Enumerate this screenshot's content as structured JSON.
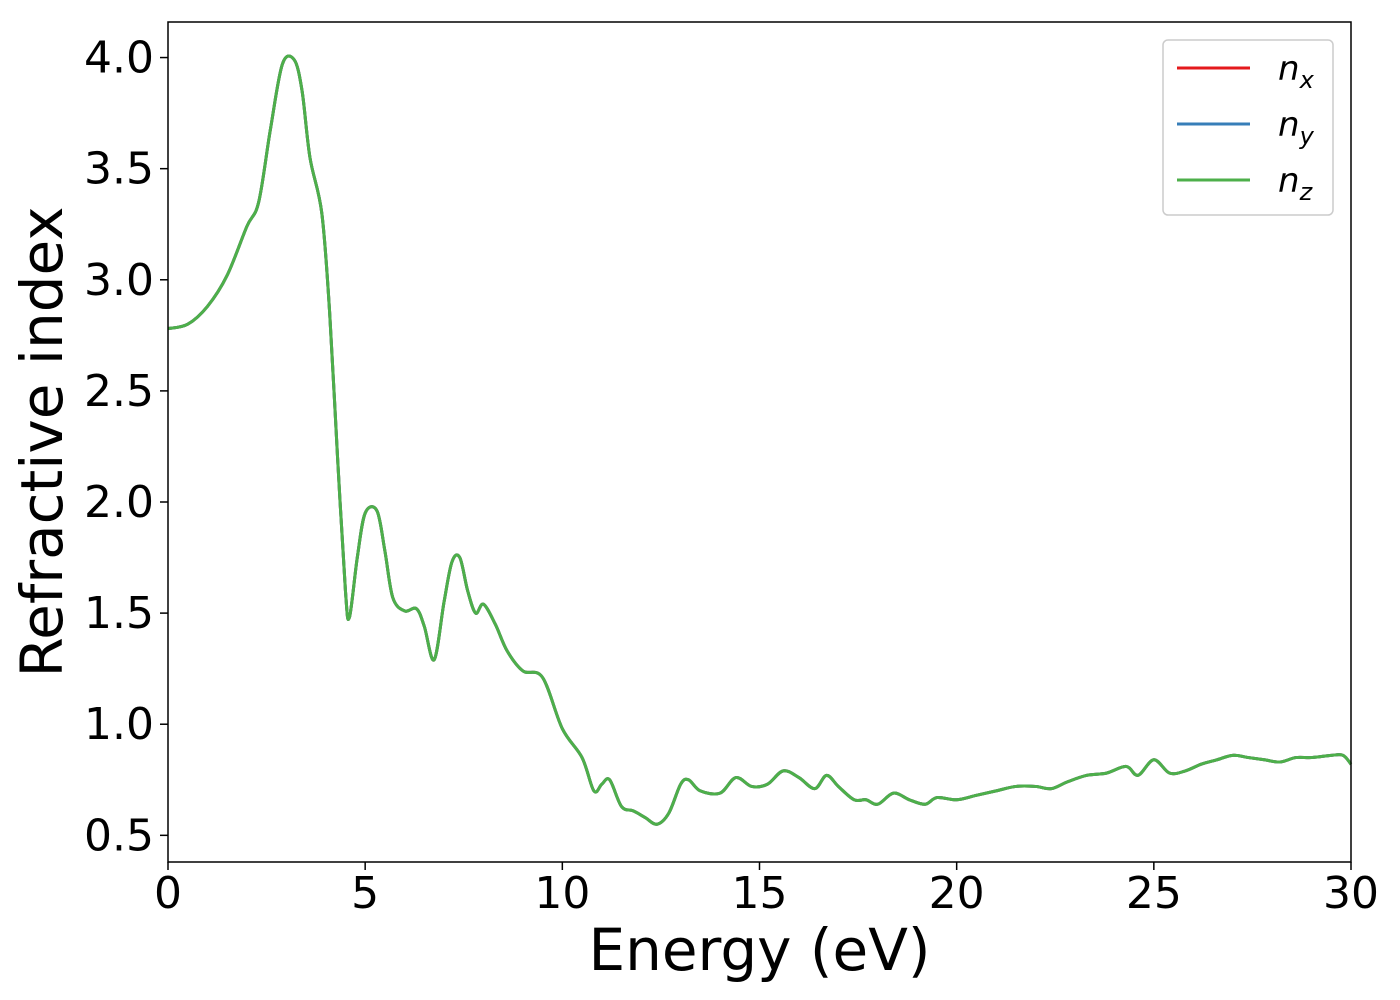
{
  "chart_data": {
    "type": "line",
    "xlabel": "Energy (eV)",
    "ylabel": "Refractive index",
    "xlim": [
      0,
      30
    ],
    "ylim": [
      0.38,
      4.16
    ],
    "xticks": [
      0,
      5,
      10,
      15,
      20,
      25,
      30
    ],
    "xtick_labels": [
      "0",
      "5",
      "10",
      "15",
      "20",
      "25",
      "30"
    ],
    "yticks": [
      0.5,
      1.0,
      1.5,
      2.0,
      2.5,
      3.0,
      3.5,
      4.0
    ],
    "ytick_labels": [
      "0.5",
      "1.0",
      "1.5",
      "2.0",
      "2.5",
      "3.0",
      "3.5",
      "4.0"
    ],
    "grid": false,
    "legend_position": "top-right",
    "series": [
      {
        "name": "n_x",
        "label_base": "n",
        "label_sub": "x",
        "color": "#e41a1c",
        "x": [
          0,
          0.5,
          1,
          1.5,
          2,
          2.3,
          2.6,
          2.9,
          3.2,
          3.4,
          3.6,
          3.9,
          4.1,
          4.3,
          4.5,
          4.6,
          4.8,
          5.0,
          5.3,
          5.5,
          5.7,
          6.0,
          6.3,
          6.5,
          6.75,
          7.0,
          7.2,
          7.4,
          7.6,
          7.8,
          8.0,
          8.3,
          8.6,
          9.0,
          9.5,
          10,
          10.5,
          10.8,
          11.0,
          11.2,
          11.5,
          11.8,
          12.1,
          12.4,
          12.7,
          13.0,
          13.2,
          13.5,
          14.0,
          14.4,
          14.8,
          15.2,
          15.6,
          16.0,
          16.4,
          16.7,
          17.0,
          17.4,
          17.7,
          18.0,
          18.4,
          18.8,
          19.2,
          19.5,
          20.0,
          20.5,
          21.0,
          21.5,
          22.0,
          22.4,
          22.8,
          23.3,
          23.8,
          24.3,
          24.6,
          25.0,
          25.4,
          25.8,
          26.2,
          26.6,
          27.0,
          27.4,
          27.8,
          28.2,
          28.6,
          29.0,
          29.5,
          29.8,
          30
        ],
        "y": [
          2.78,
          2.8,
          2.88,
          3.02,
          3.24,
          3.35,
          3.68,
          3.97,
          3.99,
          3.85,
          3.55,
          3.3,
          2.85,
          2.2,
          1.6,
          1.48,
          1.75,
          1.95,
          1.96,
          1.78,
          1.57,
          1.51,
          1.52,
          1.44,
          1.29,
          1.55,
          1.73,
          1.75,
          1.6,
          1.5,
          1.54,
          1.45,
          1.33,
          1.24,
          1.21,
          0.98,
          0.85,
          0.7,
          0.73,
          0.75,
          0.63,
          0.61,
          0.58,
          0.55,
          0.6,
          0.73,
          0.75,
          0.7,
          0.69,
          0.76,
          0.72,
          0.73,
          0.79,
          0.76,
          0.71,
          0.77,
          0.72,
          0.66,
          0.66,
          0.64,
          0.69,
          0.66,
          0.64,
          0.67,
          0.66,
          0.68,
          0.7,
          0.72,
          0.72,
          0.71,
          0.74,
          0.77,
          0.78,
          0.81,
          0.77,
          0.84,
          0.78,
          0.79,
          0.82,
          0.84,
          0.86,
          0.85,
          0.84,
          0.83,
          0.85,
          0.85,
          0.86,
          0.86,
          0.82
        ]
      },
      {
        "name": "n_y",
        "label_base": "n",
        "label_sub": "y",
        "color": "#377eb8",
        "x": [
          0,
          0.5,
          1,
          1.5,
          2,
          2.3,
          2.6,
          2.9,
          3.2,
          3.4,
          3.6,
          3.9,
          4.1,
          4.3,
          4.5,
          4.6,
          4.8,
          5.0,
          5.3,
          5.5,
          5.7,
          6.0,
          6.3,
          6.5,
          6.75,
          7.0,
          7.2,
          7.4,
          7.6,
          7.8,
          8.0,
          8.3,
          8.6,
          9.0,
          9.5,
          10,
          10.5,
          10.8,
          11.0,
          11.2,
          11.5,
          11.8,
          12.1,
          12.4,
          12.7,
          13.0,
          13.2,
          13.5,
          14.0,
          14.4,
          14.8,
          15.2,
          15.6,
          16.0,
          16.4,
          16.7,
          17.0,
          17.4,
          17.7,
          18.0,
          18.4,
          18.8,
          19.2,
          19.5,
          20.0,
          20.5,
          21.0,
          21.5,
          22.0,
          22.4,
          22.8,
          23.3,
          23.8,
          24.3,
          24.6,
          25.0,
          25.4,
          25.8,
          26.2,
          26.6,
          27.0,
          27.4,
          27.8,
          28.2,
          28.6,
          29.0,
          29.5,
          29.8,
          30
        ],
        "y": [
          2.78,
          2.8,
          2.88,
          3.02,
          3.24,
          3.35,
          3.68,
          3.97,
          3.99,
          3.85,
          3.55,
          3.3,
          2.85,
          2.2,
          1.6,
          1.48,
          1.75,
          1.95,
          1.96,
          1.78,
          1.57,
          1.51,
          1.52,
          1.44,
          1.29,
          1.55,
          1.73,
          1.75,
          1.6,
          1.5,
          1.54,
          1.45,
          1.33,
          1.24,
          1.21,
          0.98,
          0.85,
          0.7,
          0.73,
          0.75,
          0.63,
          0.61,
          0.58,
          0.55,
          0.6,
          0.73,
          0.75,
          0.7,
          0.69,
          0.76,
          0.72,
          0.73,
          0.79,
          0.76,
          0.71,
          0.77,
          0.72,
          0.66,
          0.66,
          0.64,
          0.69,
          0.66,
          0.64,
          0.67,
          0.66,
          0.68,
          0.7,
          0.72,
          0.72,
          0.71,
          0.74,
          0.77,
          0.78,
          0.81,
          0.77,
          0.84,
          0.78,
          0.79,
          0.82,
          0.84,
          0.86,
          0.85,
          0.84,
          0.83,
          0.85,
          0.85,
          0.86,
          0.86,
          0.82
        ]
      },
      {
        "name": "n_z",
        "label_base": "n",
        "label_sub": "z",
        "color": "#4daf4a",
        "x": [
          0,
          0.5,
          1,
          1.5,
          2,
          2.3,
          2.6,
          2.9,
          3.2,
          3.4,
          3.6,
          3.9,
          4.1,
          4.3,
          4.5,
          4.6,
          4.8,
          5.0,
          5.3,
          5.5,
          5.7,
          6.0,
          6.3,
          6.5,
          6.75,
          7.0,
          7.2,
          7.4,
          7.6,
          7.8,
          8.0,
          8.3,
          8.6,
          9.0,
          9.5,
          10,
          10.5,
          10.8,
          11.0,
          11.2,
          11.5,
          11.8,
          12.1,
          12.4,
          12.7,
          13.0,
          13.2,
          13.5,
          14.0,
          14.4,
          14.8,
          15.2,
          15.6,
          16.0,
          16.4,
          16.7,
          17.0,
          17.4,
          17.7,
          18.0,
          18.4,
          18.8,
          19.2,
          19.5,
          20.0,
          20.5,
          21.0,
          21.5,
          22.0,
          22.4,
          22.8,
          23.3,
          23.8,
          24.3,
          24.6,
          25.0,
          25.4,
          25.8,
          26.2,
          26.6,
          27.0,
          27.4,
          27.8,
          28.2,
          28.6,
          29.0,
          29.5,
          29.8,
          30
        ],
        "y": [
          2.78,
          2.8,
          2.88,
          3.02,
          3.24,
          3.35,
          3.68,
          3.97,
          3.99,
          3.85,
          3.55,
          3.3,
          2.85,
          2.2,
          1.6,
          1.48,
          1.75,
          1.95,
          1.96,
          1.78,
          1.57,
          1.51,
          1.52,
          1.44,
          1.29,
          1.55,
          1.73,
          1.75,
          1.6,
          1.5,
          1.54,
          1.45,
          1.33,
          1.24,
          1.21,
          0.98,
          0.85,
          0.7,
          0.73,
          0.75,
          0.63,
          0.61,
          0.58,
          0.55,
          0.6,
          0.73,
          0.75,
          0.7,
          0.69,
          0.76,
          0.72,
          0.73,
          0.79,
          0.76,
          0.71,
          0.77,
          0.72,
          0.66,
          0.66,
          0.64,
          0.69,
          0.66,
          0.64,
          0.67,
          0.66,
          0.68,
          0.7,
          0.72,
          0.72,
          0.71,
          0.74,
          0.77,
          0.78,
          0.81,
          0.77,
          0.84,
          0.78,
          0.79,
          0.82,
          0.84,
          0.86,
          0.85,
          0.84,
          0.83,
          0.85,
          0.85,
          0.86,
          0.86,
          0.82
        ]
      }
    ]
  }
}
